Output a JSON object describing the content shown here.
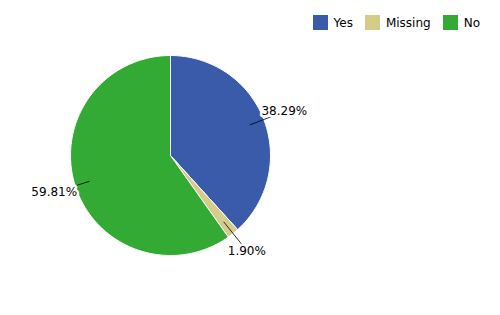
{
  "chart_data": {
    "type": "pie",
    "categories": [
      "Yes",
      "Missing",
      "No"
    ],
    "values": [
      38.29,
      1.9,
      59.81
    ],
    "value_labels": [
      "38.29%",
      "1.90%",
      "59.81%"
    ],
    "colors": [
      "#3a5aaa",
      "#d4cc8a",
      "#33aa33"
    ],
    "data_labels": true,
    "legend": "upper right"
  }
}
